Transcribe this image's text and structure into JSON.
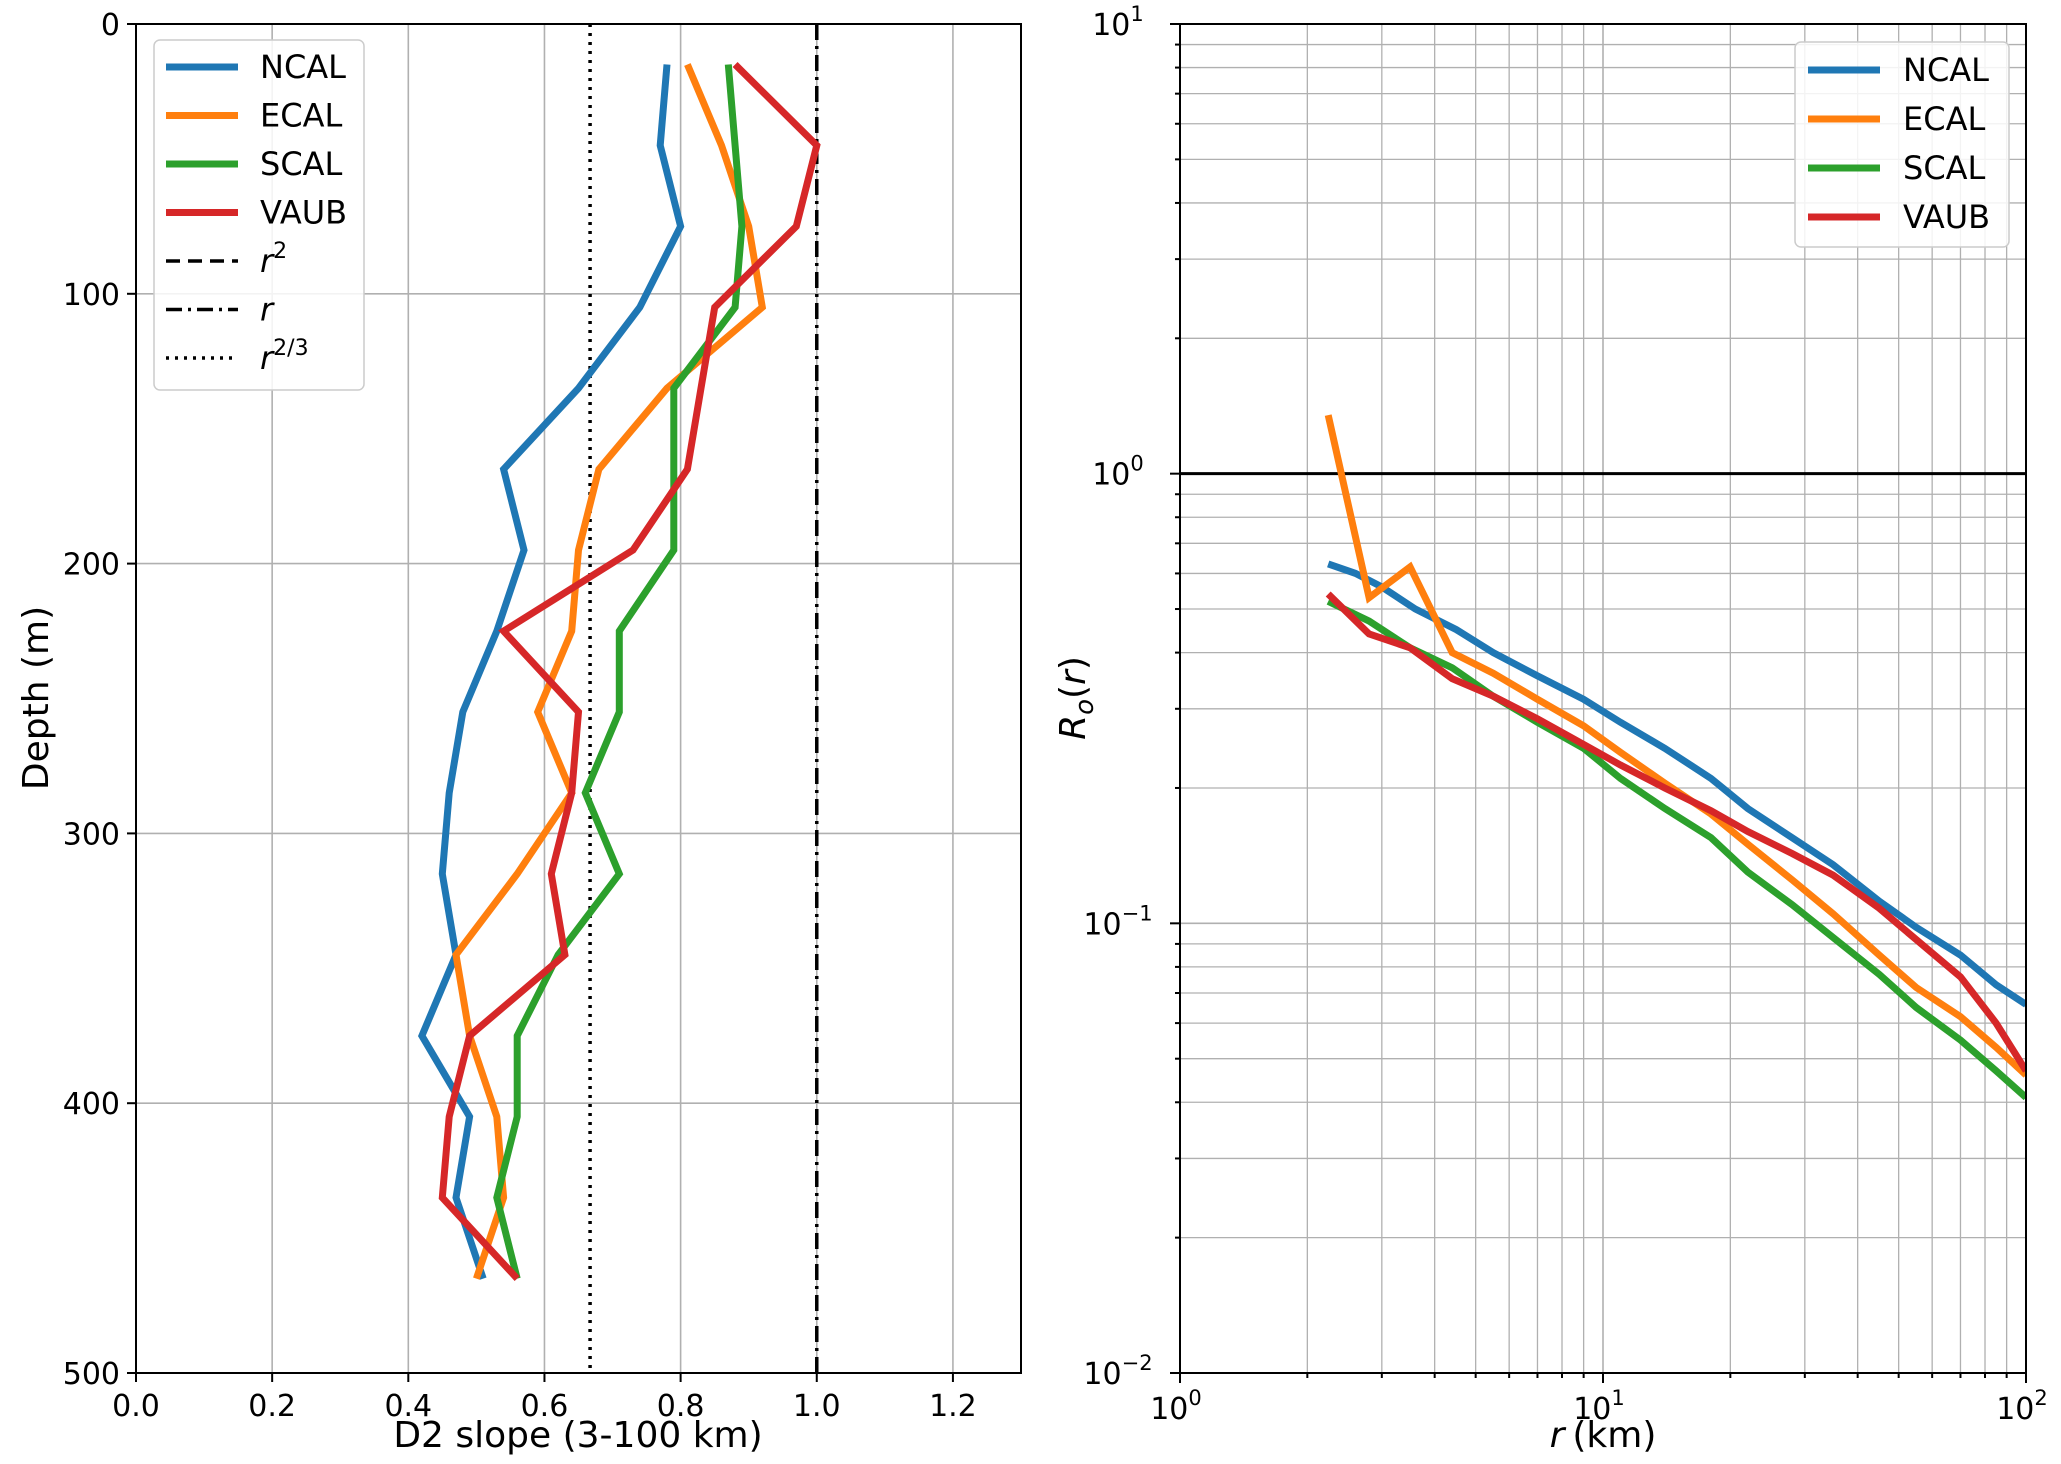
{
  "chart_data": [
    {
      "type": "line",
      "xlabel": "D2 slope (3-100 km)",
      "ylabel": "Depth (m)",
      "xlim": [
        0.0,
        1.3
      ],
      "ylim": [
        500,
        0
      ],
      "y_inverted": true,
      "xticks": [
        "0.0",
        "0.2",
        "0.4",
        "0.6",
        "0.8",
        "1.0",
        "1.2"
      ],
      "xtick_values": [
        0.0,
        0.2,
        0.4,
        0.6,
        0.8,
        1.0,
        1.2
      ],
      "yticks": [
        "0",
        "100",
        "200",
        "300",
        "400",
        "500"
      ],
      "ytick_values": [
        0,
        100,
        200,
        300,
        400,
        500
      ],
      "grid": true,
      "legend_position": "top-left",
      "depth": [
        15,
        45,
        75,
        105,
        135,
        165,
        195,
        225,
        255,
        285,
        315,
        345,
        375,
        405,
        435,
        465
      ],
      "series": [
        {
          "name": "NCAL",
          "color": "#1f77b4",
          "x": [
            0.78,
            0.77,
            0.8,
            0.74,
            0.65,
            0.54,
            0.57,
            0.53,
            0.48,
            0.46,
            0.45,
            0.47,
            0.42,
            0.49,
            0.47,
            0.51
          ]
        },
        {
          "name": "ECAL",
          "color": "#ff7f0e",
          "x": [
            0.81,
            0.86,
            0.9,
            0.92,
            0.78,
            0.68,
            0.65,
            0.64,
            0.59,
            0.64,
            0.56,
            0.47,
            0.49,
            0.53,
            0.54,
            0.5
          ]
        },
        {
          "name": "SCAL",
          "color": "#2ca02c",
          "x": [
            0.87,
            0.88,
            0.89,
            0.88,
            0.79,
            0.79,
            0.79,
            0.71,
            0.71,
            0.66,
            0.71,
            0.62,
            0.56,
            0.56,
            0.53,
            0.56
          ]
        },
        {
          "name": "VAUB",
          "color": "#d62728",
          "x": [
            0.88,
            1.0,
            0.97,
            0.85,
            0.83,
            0.81,
            0.73,
            0.54,
            0.65,
            0.64,
            0.61,
            0.63,
            0.49,
            0.46,
            0.45,
            0.56
          ]
        }
      ],
      "reference_lines": [
        {
          "name": "r^2",
          "label_base": "r",
          "label_sup": "2",
          "style": "dashed"
        },
        {
          "name": "r",
          "label_base": "r",
          "label_sup": "",
          "style": "dashdot",
          "x": 1.0
        },
        {
          "name": "r^{2/3}",
          "label_base": "r",
          "label_sup": "2/3",
          "style": "dotted",
          "x": 0.667
        }
      ]
    },
    {
      "type": "line",
      "xlabel": "r (km)",
      "xlabel_italic": "r",
      "xlabel_unit": "(km)",
      "ylabel": "R_o(r)",
      "xscale": "log",
      "yscale": "log",
      "xlim": [
        1,
        100
      ],
      "ylim": [
        0.01,
        10
      ],
      "xticks": [
        {
          "base": "10",
          "exp": "0"
        },
        {
          "base": "10",
          "exp": "1"
        },
        {
          "base": "10",
          "exp": "2"
        }
      ],
      "yticks": [
        {
          "base": "10",
          "exp": "−2"
        },
        {
          "base": "10",
          "exp": "−1"
        },
        {
          "base": "10",
          "exp": "0"
        },
        {
          "base": "10",
          "exp": "1"
        }
      ],
      "grid": true,
      "legend_position": "top-right",
      "hline": 1.0,
      "series": [
        {
          "name": "NCAL",
          "color": "#1f77b4",
          "x": [
            2.24,
            2.6,
            3.0,
            3.6,
            4.5,
            5.5,
            7,
            9,
            11,
            14,
            18,
            22,
            28,
            35,
            45,
            55,
            70,
            85,
            100
          ],
          "y": [
            0.63,
            0.6,
            0.56,
            0.5,
            0.45,
            0.4,
            0.355,
            0.315,
            0.28,
            0.245,
            0.21,
            0.18,
            0.155,
            0.135,
            0.112,
            0.098,
            0.085,
            0.073,
            0.066
          ]
        },
        {
          "name": "ECAL",
          "color": "#ff7f0e",
          "x": [
            2.24,
            2.8,
            3.5,
            4.4,
            5.5,
            7,
            9,
            11,
            14,
            18,
            22,
            28,
            35,
            45,
            55,
            70,
            85,
            100
          ],
          "y": [
            1.35,
            0.53,
            0.62,
            0.4,
            0.36,
            0.315,
            0.275,
            0.24,
            0.205,
            0.175,
            0.15,
            0.125,
            0.105,
            0.085,
            0.072,
            0.062,
            0.053,
            0.046
          ]
        },
        {
          "name": "SCAL",
          "color": "#2ca02c",
          "x": [
            2.24,
            2.8,
            3.5,
            4.4,
            5.5,
            7,
            9,
            11,
            14,
            18,
            22,
            28,
            35,
            45,
            55,
            70,
            85,
            100
          ],
          "y": [
            0.52,
            0.47,
            0.41,
            0.37,
            0.32,
            0.28,
            0.245,
            0.21,
            0.18,
            0.155,
            0.13,
            0.11,
            0.093,
            0.077,
            0.065,
            0.055,
            0.047,
            0.041
          ]
        },
        {
          "name": "VAUB",
          "color": "#d62728",
          "x": [
            2.24,
            2.8,
            3.5,
            4.4,
            5.5,
            7,
            9,
            11,
            14,
            18,
            22,
            28,
            35,
            45,
            55,
            70,
            85,
            100
          ],
          "y": [
            0.54,
            0.44,
            0.41,
            0.35,
            0.32,
            0.285,
            0.25,
            0.225,
            0.2,
            0.178,
            0.16,
            0.143,
            0.128,
            0.108,
            0.092,
            0.076,
            0.06,
            0.047
          ]
        }
      ]
    }
  ]
}
